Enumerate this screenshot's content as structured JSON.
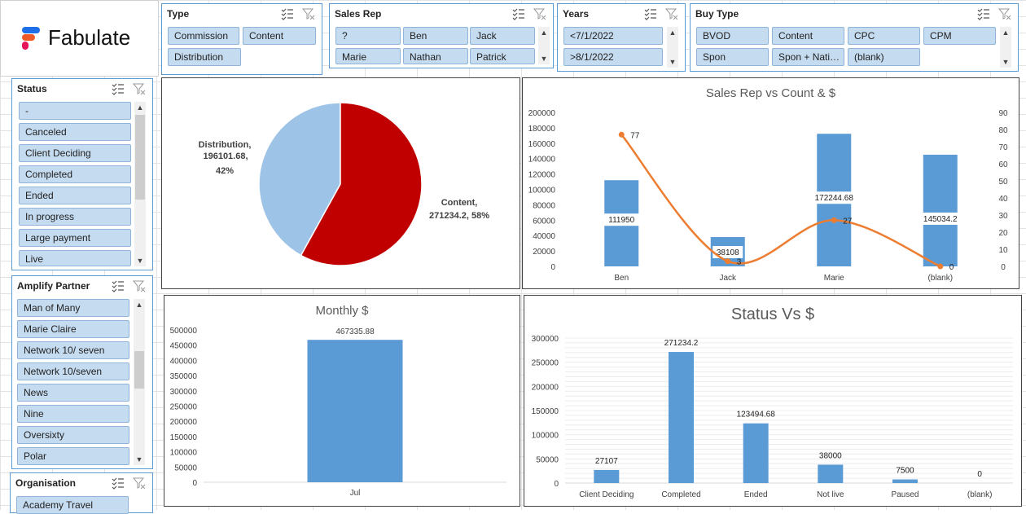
{
  "brand": {
    "name": "Fabulate"
  },
  "slicers": {
    "type": {
      "title": "Type",
      "items": [
        "Commission",
        "Content",
        "Distribution"
      ]
    },
    "sales_rep": {
      "title": "Sales Rep",
      "items": [
        "?",
        "Ben",
        "Jack",
        "Marie",
        "Nathan",
        "Patrick"
      ]
    },
    "years": {
      "title": "Years",
      "items": [
        "<7/1/2022",
        ">8/1/2022"
      ]
    },
    "buy_type": {
      "title": "Buy Type",
      "items": [
        "BVOD",
        "Content",
        "CPC",
        "CPM",
        "Spon",
        "Spon + Nati…",
        "(blank)"
      ]
    },
    "status": {
      "title": "Status",
      "items": [
        "-",
        "Canceled",
        "Client Deciding",
        "Completed",
        "Ended",
        "In progress",
        "Large payment",
        "Live"
      ]
    },
    "amplify_partner": {
      "title": "Amplify Partner",
      "items": [
        "Man of Many",
        "Marie Claire",
        "Network 10/ seven",
        "Network 10/seven",
        "News",
        "Nine",
        "Oversixty",
        "Polar"
      ]
    },
    "organisation": {
      "title": "Organisation",
      "items": [
        "Academy Travel"
      ]
    }
  },
  "chart_data": [
    {
      "type": "pie",
      "title": "",
      "slices": [
        {
          "label": "Content",
          "value": 271234.2,
          "percent": 58,
          "color": "#c00000"
        },
        {
          "label": "Distribution",
          "value": 196101.68,
          "percent": 42,
          "color": "#9dc3e6"
        }
      ],
      "data_labels": [
        "Content,",
        "271234.2, 58%",
        "Distribution,",
        "196101.68,",
        "42%"
      ]
    },
    {
      "type": "bar",
      "title": "Sales Rep vs Count & $",
      "categories": [
        "Ben",
        "Jack",
        "Marie",
        "(blank)"
      ],
      "series": [
        {
          "values": [
            111950,
            38108,
            172244.68,
            145034.2
          ],
          "color": "#5b9bd5",
          "axis": "left"
        },
        {
          "values": [
            77,
            3,
            27,
            0
          ],
          "color": "#ed7d31",
          "axis": "right",
          "type": "line"
        }
      ],
      "bar_labels": [
        "111950",
        "38108",
        "172244.68",
        "145034.2"
      ],
      "line_labels": [
        "77",
        "3",
        "27",
        "0"
      ],
      "ylim": [
        0,
        200000
      ],
      "y_ticks": [
        "200000",
        "180000",
        "160000",
        "140000",
        "120000",
        "100000",
        "80000",
        "60000",
        "40000",
        "20000",
        "0"
      ],
      "y2lim": [
        0,
        90
      ],
      "y2_ticks": [
        "90",
        "80",
        "70",
        "60",
        "50",
        "40",
        "30",
        "20",
        "10",
        "0"
      ]
    },
    {
      "type": "bar",
      "title": "Monthly $",
      "categories": [
        "Jul"
      ],
      "values": [
        467335.88
      ],
      "bar_labels": [
        "467335.88"
      ],
      "color": "#5b9bd5",
      "ylim": [
        0,
        500000
      ],
      "y_ticks": [
        "500000",
        "450000",
        "400000",
        "350000",
        "300000",
        "250000",
        "200000",
        "150000",
        "100000",
        "50000",
        "0"
      ]
    },
    {
      "type": "bar",
      "title": "Status Vs $",
      "categories": [
        "Client Deciding",
        "Completed",
        "Ended",
        "Not live",
        "Paused",
        "(blank)"
      ],
      "values": [
        27107,
        271234.2,
        123494.68,
        38000,
        7500,
        0
      ],
      "bar_labels": [
        "27107",
        "271234.2",
        "123494.68",
        "38000",
        "7500",
        "0"
      ],
      "color": "#5b9bd5",
      "ylim": [
        0,
        300000
      ],
      "y_ticks": [
        "300000",
        "250000",
        "200000",
        "150000",
        "100000",
        "50000",
        "0"
      ],
      "grid": true
    }
  ]
}
